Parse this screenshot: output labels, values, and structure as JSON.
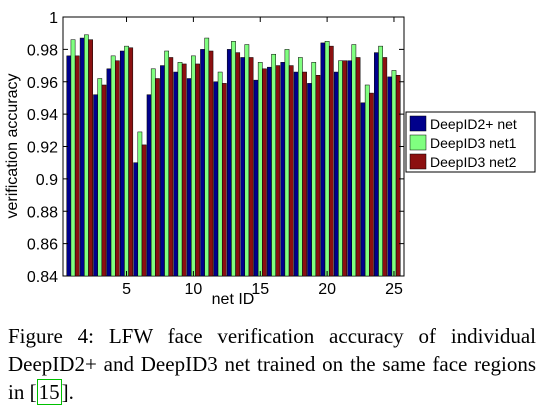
{
  "chart_data": {
    "type": "bar",
    "title": "",
    "xlabel": "net ID",
    "ylabel": "verification accuracy",
    "ylim": [
      0.84,
      1
    ],
    "yticks": [
      "0.84",
      "0.86",
      "0.88",
      "0.9",
      "0.92",
      "0.94",
      "0.96",
      "0.98",
      "1"
    ],
    "xticks": [
      "5",
      "10",
      "15",
      "20",
      "25"
    ],
    "grid": false,
    "legend": "right",
    "categories": [
      1,
      2,
      3,
      4,
      5,
      6,
      7,
      8,
      9,
      10,
      11,
      12,
      13,
      14,
      15,
      16,
      17,
      18,
      19,
      20,
      21,
      22,
      23,
      24,
      25
    ],
    "series": [
      {
        "name": "DeepID2+ net",
        "color": "#00008c",
        "values": [
          0.976,
          0.987,
          0.952,
          0.968,
          0.979,
          0.91,
          0.952,
          0.97,
          0.966,
          0.962,
          0.98,
          0.96,
          0.98,
          0.975,
          0.961,
          0.969,
          0.972,
          0.966,
          0.959,
          0.984,
          0.966,
          0.973,
          0.947,
          0.978,
          0.963
        ]
      },
      {
        "name": "DeepID3 net1",
        "color": "#80ff80",
        "values": [
          0.986,
          0.989,
          0.962,
          0.976,
          0.982,
          0.929,
          0.968,
          0.979,
          0.972,
          0.976,
          0.987,
          0.966,
          0.985,
          0.983,
          0.972,
          0.977,
          0.98,
          0.975,
          0.972,
          0.985,
          0.973,
          0.983,
          0.958,
          0.982,
          0.967
        ]
      },
      {
        "name": "DeepID3 net2",
        "color": "#8c1010",
        "values": [
          0.976,
          0.986,
          0.958,
          0.973,
          0.981,
          0.921,
          0.962,
          0.975,
          0.971,
          0.971,
          0.979,
          0.959,
          0.978,
          0.975,
          0.968,
          0.97,
          0.97,
          0.966,
          0.964,
          0.982,
          0.973,
          0.975,
          0.953,
          0.975,
          0.964
        ]
      }
    ]
  },
  "caption": {
    "text": "Figure 4:  LFW face verification accuracy of individual DeepID2+ and DeepID3 net trained on the same face regions in ",
    "ref": "15",
    "end": "."
  }
}
